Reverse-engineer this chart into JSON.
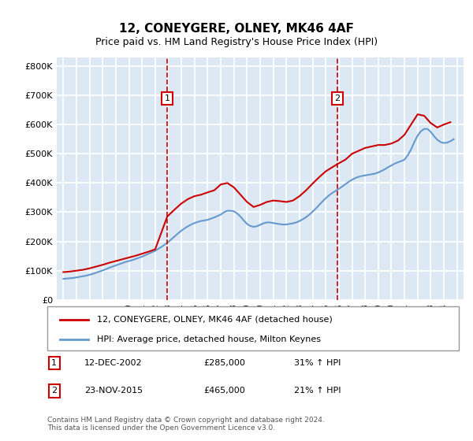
{
  "title": "12, CONEYGERE, OLNEY, MK46 4AF",
  "subtitle": "Price paid vs. HM Land Registry's House Price Index (HPI)",
  "xlabel": "",
  "ylabel": "",
  "bg_color": "#dce9f5",
  "plot_bg_color": "#dce9f5",
  "grid_color": "#ffffff",
  "y_ticks": [
    0,
    100000,
    200000,
    300000,
    400000,
    500000,
    600000,
    700000,
    800000
  ],
  "y_tick_labels": [
    "£0",
    "£100K",
    "£200K",
    "£300K",
    "£400K",
    "£500K",
    "£600K",
    "£700K",
    "£800K"
  ],
  "ylim": [
    0,
    830000
  ],
  "xlim": [
    1994.5,
    2025.5
  ],
  "x_ticks": [
    1995,
    1996,
    1997,
    1998,
    1999,
    2000,
    2001,
    2002,
    2003,
    2004,
    2005,
    2006,
    2007,
    2008,
    2009,
    2010,
    2011,
    2012,
    2013,
    2014,
    2015,
    2016,
    2017,
    2018,
    2019,
    2020,
    2021,
    2022,
    2023,
    2024,
    2025
  ],
  "sale1_x": 2002.917,
  "sale1_y": 285000,
  "sale1_label": "1",
  "sale2_x": 2015.896,
  "sale2_y": 465000,
  "sale2_label": "2",
  "red_line_color": "#cc0000",
  "blue_line_color": "#6699cc",
  "vline_color": "#cc0000",
  "marker_box_color": "#cc0000",
  "legend_label_red": "12, CONEYGERE, OLNEY, MK46 4AF (detached house)",
  "legend_label_blue": "HPI: Average price, detached house, Milton Keynes",
  "annotation1_date": "12-DEC-2002",
  "annotation1_price": "£285,000",
  "annotation1_hpi": "31% ↑ HPI",
  "annotation2_date": "23-NOV-2015",
  "annotation2_price": "£465,000",
  "annotation2_hpi": "21% ↑ HPI",
  "footer": "Contains HM Land Registry data © Crown copyright and database right 2024.\nThis data is licensed under the Open Government Licence v3.0.",
  "hpi_years": [
    1995,
    1995.25,
    1995.5,
    1995.75,
    1996,
    1996.25,
    1996.5,
    1996.75,
    1997,
    1997.25,
    1997.5,
    1997.75,
    1998,
    1998.25,
    1998.5,
    1998.75,
    1999,
    1999.25,
    1999.5,
    1999.75,
    2000,
    2000.25,
    2000.5,
    2000.75,
    2001,
    2001.25,
    2001.5,
    2001.75,
    2002,
    2002.25,
    2002.5,
    2002.75,
    2003,
    2003.25,
    2003.5,
    2003.75,
    2004,
    2004.25,
    2004.5,
    2004.75,
    2005,
    2005.25,
    2005.5,
    2005.75,
    2006,
    2006.25,
    2006.5,
    2006.75,
    2007,
    2007.25,
    2007.5,
    2007.75,
    2008,
    2008.25,
    2008.5,
    2008.75,
    2009,
    2009.25,
    2009.5,
    2009.75,
    2010,
    2010.25,
    2010.5,
    2010.75,
    2011,
    2011.25,
    2011.5,
    2011.75,
    2012,
    2012.25,
    2012.5,
    2012.75,
    2013,
    2013.25,
    2013.5,
    2013.75,
    2014,
    2014.25,
    2014.5,
    2014.75,
    2015,
    2015.25,
    2015.5,
    2015.75,
    2016,
    2016.25,
    2016.5,
    2016.75,
    2017,
    2017.25,
    2017.5,
    2017.75,
    2018,
    2018.25,
    2018.5,
    2018.75,
    2019,
    2019.25,
    2019.5,
    2019.75,
    2020,
    2020.25,
    2020.5,
    2020.75,
    2021,
    2021.25,
    2021.5,
    2021.75,
    2022,
    2022.25,
    2022.5,
    2022.75,
    2023,
    2023.25,
    2023.5,
    2023.75,
    2024,
    2024.25,
    2024.5,
    2024.75
  ],
  "hpi_values": [
    72000,
    73000,
    74000,
    75000,
    77000,
    79000,
    81000,
    83000,
    86000,
    89000,
    93000,
    97000,
    101000,
    105000,
    110000,
    114000,
    118000,
    122000,
    126000,
    130000,
    133000,
    136000,
    140000,
    144000,
    148000,
    153000,
    158000,
    163000,
    168000,
    175000,
    182000,
    190000,
    198000,
    208000,
    218000,
    228000,
    237000,
    245000,
    252000,
    258000,
    263000,
    267000,
    270000,
    272000,
    274000,
    278000,
    282000,
    287000,
    292000,
    300000,
    305000,
    305000,
    303000,
    296000,
    285000,
    272000,
    260000,
    253000,
    250000,
    252000,
    257000,
    262000,
    265000,
    265000,
    263000,
    261000,
    259000,
    258000,
    258000,
    260000,
    262000,
    265000,
    270000,
    276000,
    283000,
    292000,
    302000,
    313000,
    325000,
    337000,
    348000,
    358000,
    366000,
    373000,
    380000,
    388000,
    396000,
    404000,
    411000,
    417000,
    421000,
    424000,
    426000,
    428000,
    430000,
    432000,
    436000,
    441000,
    447000,
    454000,
    460000,
    466000,
    471000,
    475000,
    480000,
    495000,
    515000,
    540000,
    562000,
    577000,
    585000,
    585000,
    575000,
    560000,
    548000,
    540000,
    537000,
    538000,
    543000,
    550000
  ],
  "red_years": [
    1995.0,
    1995.5,
    1996.0,
    1996.5,
    1997.0,
    1997.5,
    1998.0,
    1998.5,
    1999.0,
    1999.5,
    2000.0,
    2000.5,
    2001.0,
    2001.5,
    2002.0,
    2002.917,
    2003.5,
    2004.0,
    2004.5,
    2005.0,
    2005.5,
    2006.0,
    2006.5,
    2007.0,
    2007.5,
    2008.0,
    2008.5,
    2009.0,
    2009.5,
    2010.0,
    2010.5,
    2011.0,
    2011.5,
    2012.0,
    2012.5,
    2013.0,
    2013.5,
    2014.0,
    2014.5,
    2015.0,
    2015.896,
    2016.5,
    2017.0,
    2017.5,
    2018.0,
    2018.5,
    2019.0,
    2019.5,
    2020.0,
    2020.5,
    2021.0,
    2021.5,
    2022.0,
    2022.5,
    2023.0,
    2023.5,
    2024.0,
    2024.5
  ],
  "red_values": [
    95000,
    97000,
    100000,
    103000,
    108000,
    114000,
    120000,
    127000,
    133000,
    139000,
    145000,
    151000,
    158000,
    165000,
    173000,
    285000,
    310000,
    330000,
    345000,
    355000,
    360000,
    368000,
    375000,
    395000,
    400000,
    385000,
    360000,
    335000,
    318000,
    325000,
    335000,
    340000,
    338000,
    335000,
    340000,
    355000,
    375000,
    398000,
    420000,
    440000,
    465000,
    480000,
    500000,
    510000,
    520000,
    525000,
    530000,
    530000,
    535000,
    545000,
    565000,
    600000,
    635000,
    630000,
    605000,
    590000,
    600000,
    608000
  ]
}
